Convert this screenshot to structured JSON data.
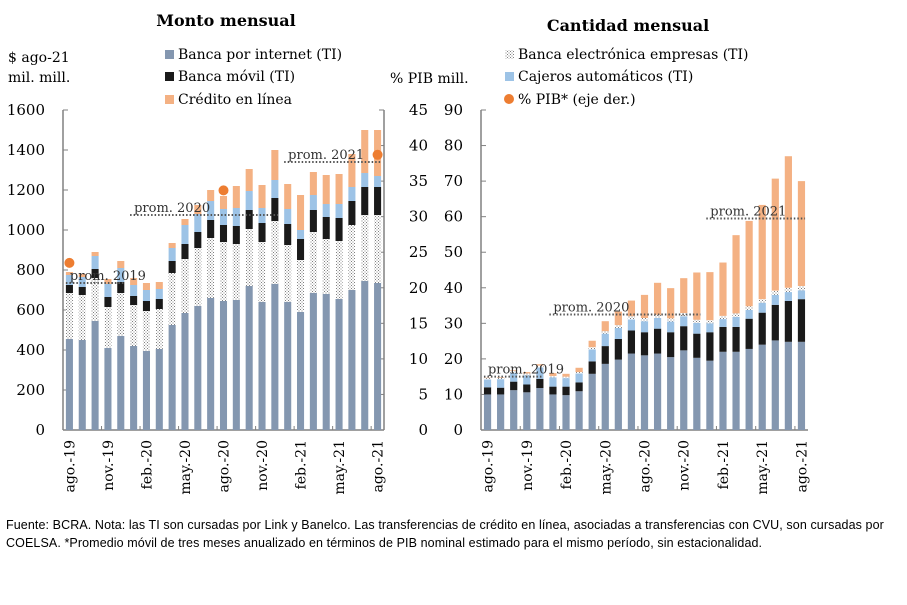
{
  "colors": {
    "internet": "#8497b0",
    "movil": "#1a1a1a",
    "credito": "#f4b183",
    "empresas": "#c8c8c8",
    "cajeros": "#9dc3e6",
    "pib": "#ed7d31"
  },
  "legend": {
    "internet": "Banca por internet (TI)",
    "movil": "Banca móvil (TI)",
    "credito": "Crédito en línea",
    "empresas": "Banca electrónica empresas (TI)",
    "cajeros": "Cajeros automáticos (TI)",
    "pib": "% PIB* (eje der.)"
  },
  "left_units": {
    "line1": "$ ago-21",
    "line2": "mil. mill."
  },
  "middle_units": "% PIB mill.",
  "footnote": "Fuente: BCRA. Nota: las TI son cursadas por Link y Banelco. Las transferencias de crédito en línea, asociadas a transferencias con CVU, son cursadas por COELSA. *Promedio móvil de tres meses anualizado en términos de PIB nominal estimado para el mismo período, sin estacionalidad.",
  "chart_data": [
    {
      "type": "bar",
      "stacked": true,
      "title": "Monto mensual",
      "ylabel": "$ ago-21 mil. mill.",
      "ylabel_right": "% PIB",
      "ylim": [
        0,
        1600
      ],
      "yticks": [
        0,
        200,
        400,
        600,
        800,
        1000,
        1200,
        1400,
        1600
      ],
      "ylim_right": [
        0,
        45
      ],
      "yticks_right": [
        0,
        5,
        10,
        15,
        20,
        25,
        30,
        35,
        40,
        45
      ],
      "x_tick_labels": [
        "ago.-19",
        "nov.-19",
        "feb.-20",
        "may.-20",
        "ago.-20",
        "nov.-20",
        "feb.-21",
        "may.-21",
        "ago.-21"
      ],
      "categories": [
        "ago-19",
        "sep-19",
        "oct-19",
        "nov-19",
        "dic-19",
        "ene-20",
        "feb-20",
        "mar-20",
        "abr-20",
        "may-20",
        "jun-20",
        "jul-20",
        "ago-20",
        "sep-20",
        "oct-20",
        "nov-20",
        "dic-20",
        "ene-21",
        "feb-21",
        "mar-21",
        "abr-21",
        "may-21",
        "jun-21",
        "jul-21",
        "ago-21"
      ],
      "series": [
        {
          "name": "Banca por internet (TI)",
          "key": "internet",
          "values": [
            455,
            450,
            545,
            410,
            470,
            420,
            395,
            405,
            525,
            585,
            620,
            660,
            645,
            650,
            720,
            640,
            730,
            640,
            590,
            685,
            680,
            655,
            700,
            745,
            735
          ]
        },
        {
          "name": "Banca electrónica empresas (TI)",
          "key": "empresas",
          "values": [
            230,
            225,
            215,
            205,
            215,
            205,
            200,
            200,
            260,
            270,
            290,
            300,
            295,
            280,
            285,
            300,
            315,
            285,
            260,
            305,
            275,
            290,
            325,
            330,
            340
          ]
        },
        {
          "name": "Banca móvil (TI)",
          "key": "movil",
          "values": [
            40,
            40,
            45,
            50,
            55,
            45,
            50,
            50,
            60,
            75,
            80,
            90,
            85,
            90,
            95,
            95,
            115,
            105,
            105,
            110,
            110,
            115,
            120,
            140,
            140
          ]
        },
        {
          "name": "Cajeros automáticos (TI)",
          "key": "cajeros",
          "values": [
            50,
            50,
            65,
            65,
            70,
            55,
            55,
            50,
            65,
            95,
            90,
            95,
            80,
            90,
            95,
            75,
            90,
            75,
            45,
            75,
            65,
            70,
            70,
            70,
            55
          ]
        },
        {
          "name": "Crédito en línea",
          "key": "credito",
          "values": [
            15,
            15,
            20,
            25,
            35,
            35,
            35,
            35,
            25,
            30,
            45,
            55,
            65,
            110,
            110,
            115,
            150,
            125,
            175,
            115,
            145,
            150,
            165,
            215,
            230
          ]
        }
      ],
      "pib_line": {
        "name": "% PIB* (eje der.)",
        "points": [
          {
            "category": "ago-19",
            "value": 23.5
          },
          {
            "category": "ago-20",
            "value": 33.7
          },
          {
            "category": "ago-21",
            "value": 38.7
          }
        ]
      },
      "averages": [
        {
          "label": "prom. 2019",
          "value": 735,
          "from": "ago-19",
          "to": "dic-19"
        },
        {
          "label": "prom. 2020",
          "value": 1075,
          "from": "ene-20",
          "to": "dic-20"
        },
        {
          "label": "prom. 2021",
          "value": 1340,
          "from": "ene-21",
          "to": "ago-21"
        }
      ]
    },
    {
      "type": "bar",
      "stacked": true,
      "title": "Cantidad mensual",
      "ylabel": "mill.",
      "ylim": [
        0,
        90
      ],
      "yticks": [
        0,
        10,
        20,
        30,
        40,
        50,
        60,
        70,
        80,
        90
      ],
      "x_tick_labels": [
        "ago.-19",
        "nov.-19",
        "feb.-20",
        "may.-20",
        "ago.-20",
        "nov.-20",
        "feb.-21",
        "may.-21",
        "ago.-21"
      ],
      "categories": [
        "ago-19",
        "sep-19",
        "oct-19",
        "nov-19",
        "dic-19",
        "ene-20",
        "feb-20",
        "mar-20",
        "abr-20",
        "may-20",
        "jun-20",
        "jul-20",
        "ago-20",
        "sep-20",
        "oct-20",
        "nov-20",
        "dic-20",
        "ene-21",
        "feb-21",
        "mar-21",
        "abr-21",
        "may-21",
        "jun-21",
        "jul-21",
        "ago-21"
      ],
      "series": [
        {
          "name": "Banca por internet (TI)",
          "key": "internet",
          "values": [
            10.0,
            10.0,
            11.2,
            10.6,
            11.8,
            10.0,
            9.8,
            10.9,
            15.8,
            18.6,
            19.8,
            21.5,
            21.0,
            21.5,
            20.5,
            22.4,
            20.3,
            19.5,
            22.0,
            22.0,
            22.8,
            24.0,
            25.2,
            24.8,
            24.8
          ]
        },
        {
          "name": "Banca móvil (TI)",
          "key": "movil",
          "values": [
            2.0,
            1.9,
            2.4,
            2.2,
            2.6,
            2.2,
            2.4,
            2.5,
            3.5,
            5.0,
            5.8,
            6.5,
            6.5,
            7.0,
            7.0,
            6.8,
            6.8,
            8.0,
            7.0,
            7.0,
            8.5,
            9.0,
            10.0,
            11.5,
            12.0
          ]
        },
        {
          "name": "Cajeros automáticos (TI)",
          "key": "cajeros",
          "values": [
            2.2,
            2.4,
            2.5,
            2.6,
            3.2,
            2.6,
            2.4,
            2.5,
            3.4,
            3.5,
            3.1,
            3.1,
            3.1,
            3.0,
            3.0,
            2.8,
            3.0,
            2.5,
            2.2,
            2.8,
            2.5,
            2.8,
            2.8,
            2.5,
            2.5
          ]
        },
        {
          "name": "Banca electrónica empresas (TI)",
          "key": "empresas",
          "values": [
            0.4,
            0.4,
            0.5,
            0.5,
            0.5,
            0.4,
            0.4,
            0.4,
            0.6,
            0.7,
            0.8,
            0.9,
            0.9,
            0.9,
            0.9,
            0.9,
            0.9,
            0.9,
            0.9,
            1.0,
            1.0,
            1.0,
            1.2,
            1.2,
            1.2
          ]
        },
        {
          "name": "Crédito en línea",
          "key": "credito",
          "values": [
            0.1,
            0.2,
            0.2,
            0.4,
            0.4,
            0.8,
            0.8,
            1.2,
            1.8,
            2.8,
            3.8,
            4.4,
            6.5,
            9.0,
            8.5,
            9.8,
            13.3,
            13.5,
            15.0,
            22.0,
            24.0,
            26.5,
            31.5,
            37.0,
            29.5
          ]
        }
      ],
      "averages": [
        {
          "label": "prom. 2019",
          "value": 15.0,
          "from": "ago-19",
          "to": "dic-19"
        },
        {
          "label": "prom. 2020",
          "value": 32.5,
          "from": "ene-20",
          "to": "dic-20"
        },
        {
          "label": "prom. 2021",
          "value": 59.5,
          "from": "ene-21",
          "to": "ago-21"
        }
      ]
    }
  ]
}
